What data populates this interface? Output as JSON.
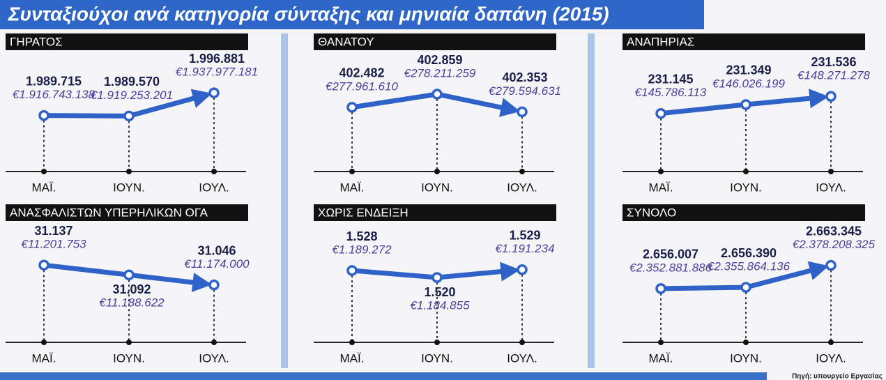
{
  "title": "Συνταξιούχοι ανά κατηγορία σύνταξης και μηνιαία δαπάνη (2015)",
  "source": "Πηγή: υπουργείο Εργασίας",
  "chart_data": [
    {
      "type": "line",
      "title": "ΓΗΡΑΤΟΣ",
      "categories": [
        "ΜΑΪ.",
        "ΙΟΥΝ.",
        "ΙΟΥΛ."
      ],
      "ylim": [
        1987000,
        1998000
      ],
      "series": [
        {
          "color": "#2f62c9",
          "values": [
            1989715,
            1989570,
            1996881
          ],
          "value_labels": [
            "1.989.715",
            "1.989.570",
            "1.996.881"
          ]
        },
        {
          "color": "#4b3f9e",
          "values": [
            1916743138,
            1919253201,
            1937977181
          ],
          "value_labels": [
            "€1.916.743.138",
            "€1.919.253.201",
            "€1.937.977.181"
          ]
        }
      ]
    },
    {
      "type": "line",
      "title": "ΘΑΝΑΤΟΥ",
      "categories": [
        "ΜΑΪ.",
        "ΙΟΥΝ.",
        "ΙΟΥΛ."
      ],
      "ylim": [
        402000,
        403000
      ],
      "series": [
        {
          "color": "#2f62c9",
          "values": [
            402482,
            402859,
            402353
          ],
          "value_labels": [
            "402.482",
            "402.859",
            "402.353"
          ]
        },
        {
          "color": "#4b3f9e",
          "values": [
            277961610,
            278211259,
            279594631
          ],
          "value_labels": [
            "€277.961.610",
            "€278.211.259",
            "€279.594.631"
          ]
        }
      ]
    },
    {
      "type": "line",
      "title": "ΑΝΑΠΗΡΙΑΣ",
      "categories": [
        "ΜΑΪ.",
        "ΙΟΥΝ.",
        "ΙΟΥΛ."
      ],
      "ylim": [
        230900,
        231700
      ],
      "series": [
        {
          "color": "#2f62c9",
          "values": [
            231145,
            231349,
            231536
          ],
          "value_labels": [
            "231.145",
            "231.349",
            "231.536"
          ]
        },
        {
          "color": "#4b3f9e",
          "values": [
            145786113,
            146026199,
            148271278
          ],
          "value_labels": [
            "€145.786.113",
            "€146.026.199",
            "€148.271.278"
          ]
        }
      ]
    },
    {
      "type": "line",
      "title": "ΑΝΑΣΦΑΛΙΣΤΩΝ ΥΠΕΡΗΛΙΚΩΝ ΟΓΑ",
      "categories": [
        "ΜΑΪ.",
        "ΙΟΥΝ.",
        "ΙΟΥΛ."
      ],
      "ylim": [
        31000,
        31160
      ],
      "series": [
        {
          "color": "#2f62c9",
          "values": [
            31137,
            31092,
            31046
          ],
          "value_labels": [
            "31.137",
            "31.092",
            "31.046"
          ]
        },
        {
          "color": "#4b3f9e",
          "values": [
            11201753,
            11188622,
            11174000
          ],
          "value_labels": [
            "€11.201.753",
            "€11.188.622",
            "€11.174.000"
          ]
        }
      ]
    },
    {
      "type": "line",
      "title": "ΧΩΡΙΣ ΕΝΔΕΙΞΗ",
      "categories": [
        "ΜΑΪ.",
        "ΙΟΥΝ.",
        "ΙΟΥΛ."
      ],
      "ylim": [
        1500,
        1540
      ],
      "series": [
        {
          "color": "#2f62c9",
          "values": [
            1528,
            1520,
            1529
          ],
          "value_labels": [
            "1.528",
            "1.520",
            "1.529"
          ]
        },
        {
          "color": "#4b3f9e",
          "values": [
            1189272,
            1184855,
            1191234
          ],
          "value_labels": [
            "€1.189.272",
            "€1.184.855",
            "€1.191.234"
          ]
        }
      ]
    },
    {
      "type": "line",
      "title": "ΣΥΝΟΛΟ",
      "categories": [
        "ΜΑΪ.",
        "ΙΟΥΝ.",
        "ΙΟΥΛ."
      ],
      "ylim": [
        2654000,
        2665000
      ],
      "series": [
        {
          "color": "#2f62c9",
          "values": [
            2656007,
            2656390,
            2663345
          ],
          "value_labels": [
            "2.656.007",
            "2.656.390",
            "2.663.345"
          ]
        },
        {
          "color": "#4b3f9e",
          "values": [
            2352881886,
            2355864136,
            2378208325
          ],
          "value_labels": [
            "€2.352.881.886",
            "€2.355.864.136",
            "€2.378.208.325"
          ]
        }
      ]
    }
  ]
}
